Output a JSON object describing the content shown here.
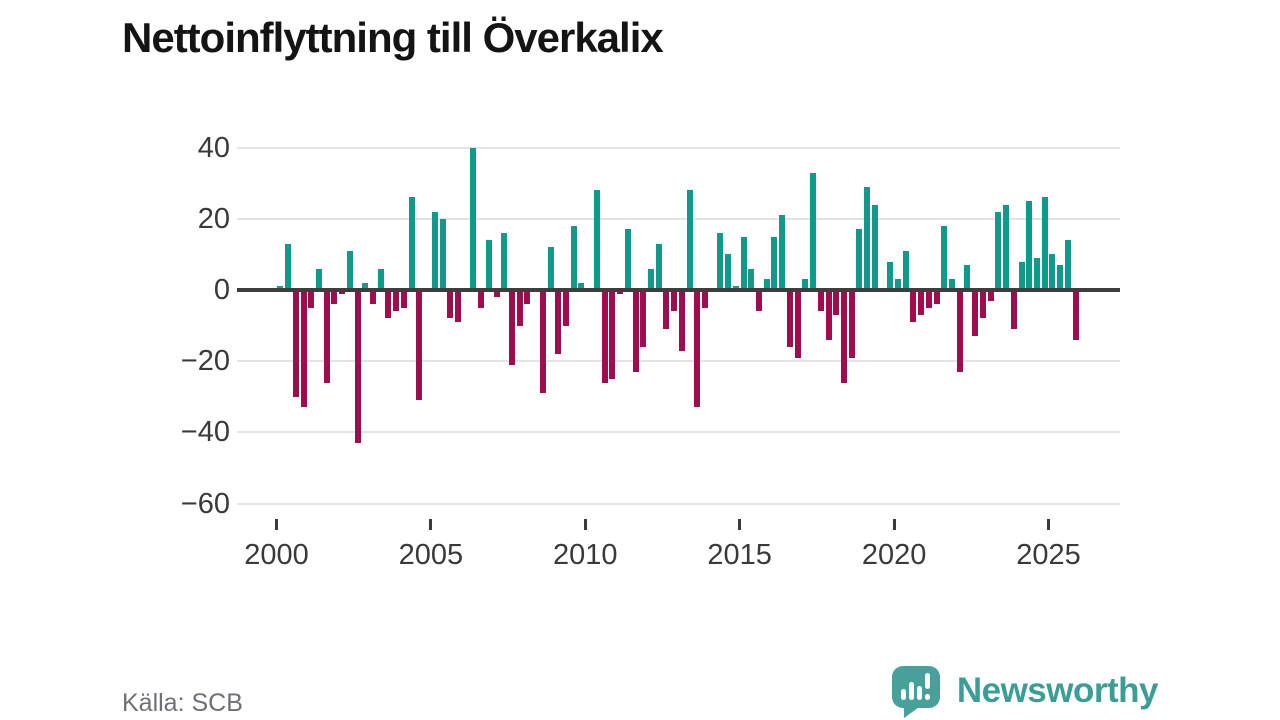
{
  "title": "Nettoinflyttning till Överkalix",
  "source": "Källa: SCB",
  "branding": {
    "name": "Newsworthy",
    "logo_icon": "speech-bubble-bar-chart-icon",
    "color": "#3c9d96"
  },
  "chart_data": {
    "type": "bar",
    "frequency": "quarterly",
    "title": "Nettoinflyttning till Överkalix",
    "xlabel": "",
    "ylabel": "",
    "ylim": [
      -65,
      45
    ],
    "yticks": [
      40,
      20,
      0,
      -20,
      -40,
      -60
    ],
    "xticks": [
      2000,
      2005,
      2010,
      2015,
      2020,
      2025
    ],
    "grid": true,
    "legend": "none",
    "colors": {
      "positive": "#0f9a8c",
      "negative": "#9e0d4d",
      "axis": "#3d3d3d",
      "gridline": "#e4e4e4"
    },
    "categories": [
      "2000 Q1",
      "2000 Q2",
      "2000 Q3",
      "2000 Q4",
      "2001 Q1",
      "2001 Q2",
      "2001 Q3",
      "2001 Q4",
      "2002 Q1",
      "2002 Q2",
      "2002 Q3",
      "2002 Q4",
      "2003 Q1",
      "2003 Q2",
      "2003 Q3",
      "2003 Q4",
      "2004 Q1",
      "2004 Q2",
      "2004 Q3",
      "2004 Q4",
      "2005 Q1",
      "2005 Q2",
      "2005 Q3",
      "2005 Q4",
      "2006 Q1",
      "2006 Q2",
      "2006 Q3",
      "2006 Q4",
      "2007 Q1",
      "2007 Q2",
      "2007 Q3",
      "2007 Q4",
      "2008 Q1",
      "2008 Q2",
      "2008 Q3",
      "2008 Q4",
      "2009 Q1",
      "2009 Q2",
      "2009 Q3",
      "2009 Q4",
      "2010 Q1",
      "2010 Q2",
      "2010 Q3",
      "2010 Q4",
      "2011 Q1",
      "2011 Q2",
      "2011 Q3",
      "2011 Q4",
      "2012 Q1",
      "2012 Q2",
      "2012 Q3",
      "2012 Q4",
      "2013 Q1",
      "2013 Q2",
      "2013 Q3",
      "2013 Q4",
      "2014 Q1",
      "2014 Q2",
      "2014 Q3",
      "2014 Q4",
      "2015 Q1",
      "2015 Q2",
      "2015 Q3",
      "2015 Q4",
      "2016 Q1",
      "2016 Q2",
      "2016 Q3",
      "2016 Q4",
      "2017 Q1",
      "2017 Q2",
      "2017 Q3",
      "2017 Q4",
      "2018 Q1",
      "2018 Q2",
      "2018 Q3",
      "2018 Q4",
      "2019 Q1",
      "2019 Q2",
      "2019 Q3",
      "2019 Q4",
      "2020 Q1",
      "2020 Q2",
      "2020 Q3",
      "2020 Q4",
      "2021 Q1",
      "2021 Q2",
      "2021 Q3",
      "2021 Q4",
      "2022 Q1",
      "2022 Q2",
      "2022 Q3",
      "2022 Q4",
      "2023 Q1",
      "2023 Q2",
      "2023 Q3",
      "2023 Q4",
      "2024 Q1",
      "2024 Q2",
      "2024 Q3",
      "2024 Q4",
      "2025 Q1",
      "2025 Q2",
      "2025 Q3",
      "2025 Q4"
    ],
    "values": [
      1,
      13,
      -30,
      -33,
      -5,
      6,
      -26,
      -4,
      -1,
      11,
      -43,
      2,
      -4,
      6,
      -8,
      -6,
      -5,
      26,
      -31,
      0,
      22,
      20,
      -8,
      -9,
      0,
      40,
      -5,
      14,
      -2,
      16,
      -21,
      -10,
      -4,
      0,
      -29,
      12,
      -18,
      -10,
      18,
      2,
      0,
      28,
      -26,
      -25,
      -1,
      17,
      -23,
      -16,
      6,
      13,
      -11,
      -6,
      -17,
      28,
      -33,
      -5,
      0,
      16,
      10,
      1,
      15,
      6,
      -6,
      3,
      15,
      21,
      -16,
      -19,
      3,
      33,
      -6,
      -14,
      -7,
      -26,
      -19,
      17,
      29,
      24,
      0,
      8,
      3,
      11,
      -9,
      -7,
      -5,
      -4,
      18,
      3,
      -23,
      7,
      -13,
      -8,
      -3,
      22,
      24,
      -11,
      8,
      25,
      9,
      26,
      10,
      7,
      14,
      -14
    ]
  }
}
